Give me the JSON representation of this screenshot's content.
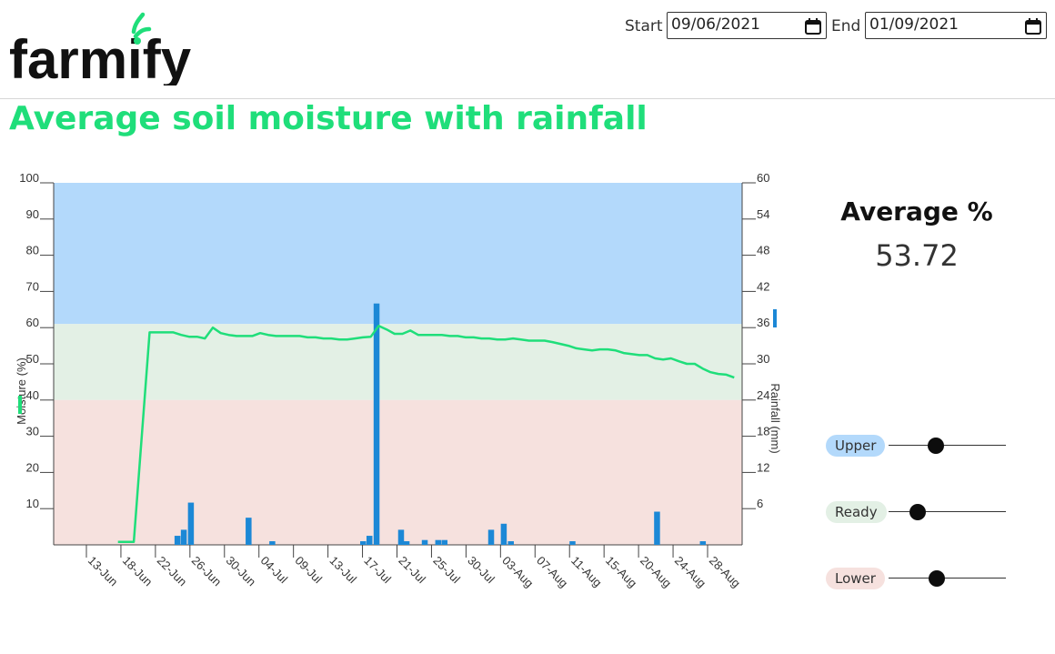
{
  "header": {
    "logo_text": "farmify",
    "start_label": "Start",
    "start_value": "09/06/2021",
    "end_label": "End",
    "end_value": "01/09/2021",
    "calendar_icon": "calendar-icon"
  },
  "page_title": "Average soil moisture with rainfall",
  "summary": {
    "title": "Average %",
    "value": "53.72"
  },
  "thresholds": [
    {
      "label": "Upper",
      "color": "#b3d9fb",
      "level": 40
    },
    {
      "label": "Ready",
      "color": "#e3f0e5",
      "level": 25
    },
    {
      "label": "Lower",
      "color": "#f6e1de",
      "level": 41
    }
  ],
  "chart_data": {
    "type": "bar+line",
    "ylabel": "Moisture (%)",
    "y2label": "Rainfall (mm)",
    "ylim": [
      0,
      100
    ],
    "y2lim": [
      0,
      60
    ],
    "yticks": [
      "100",
      "90",
      "80",
      "70",
      "60",
      "50",
      "40",
      "30",
      "20",
      "10"
    ],
    "y2ticks": [
      "60",
      "54",
      "48",
      "42",
      "36",
      "30",
      "24",
      "18",
      "12",
      "6"
    ],
    "xticks": [
      "13-Jun",
      "18-Jun",
      "22-Jun",
      "26-Jun",
      "30-Jun",
      "04-Jul",
      "09-Jul",
      "13-Jul",
      "17-Jul",
      "21-Jul",
      "25-Jul",
      "30-Jul",
      "03-Aug",
      "07-Aug",
      "11-Aug",
      "15-Aug",
      "20-Aug",
      "24-Aug",
      "28-Aug"
    ],
    "x_range_days": [
      0,
      83
    ],
    "bands": [
      {
        "name": "Upper",
        "from": 61,
        "to": 100,
        "color": "#b3d9fb"
      },
      {
        "name": "Ready",
        "from": 40,
        "to": 61,
        "color": "#e3f0e5"
      },
      {
        "name": "Lower",
        "from": 0,
        "to": 40,
        "color": "#f6e1de"
      }
    ],
    "line_color": "#1fde7a",
    "bar_color": "#1c88d6",
    "moisture": [
      [
        4,
        0.8
      ],
      [
        6,
        0.8
      ],
      [
        8,
        58.7
      ],
      [
        10,
        58.7
      ],
      [
        11,
        58.7
      ],
      [
        12,
        58
      ],
      [
        13,
        57.5
      ],
      [
        14,
        57.5
      ],
      [
        15,
        57
      ],
      [
        16,
        60
      ],
      [
        17,
        58.5
      ],
      [
        18,
        58
      ],
      [
        19,
        57.7
      ],
      [
        20,
        57.7
      ],
      [
        21,
        57.7
      ],
      [
        22,
        58.5
      ],
      [
        23,
        58
      ],
      [
        24,
        57.7
      ],
      [
        25,
        57.7
      ],
      [
        26,
        57.7
      ],
      [
        27,
        57.7
      ],
      [
        28,
        57.3
      ],
      [
        29,
        57.3
      ],
      [
        30,
        57
      ],
      [
        31,
        57
      ],
      [
        32,
        56.7
      ],
      [
        33,
        56.7
      ],
      [
        34,
        57
      ],
      [
        35,
        57.3
      ],
      [
        36,
        57.5
      ],
      [
        37,
        60.5
      ],
      [
        38,
        59.5
      ],
      [
        39,
        58.3
      ],
      [
        40,
        58.3
      ],
      [
        41,
        59.2
      ],
      [
        42,
        58
      ],
      [
        43,
        58
      ],
      [
        44,
        58
      ],
      [
        45,
        58
      ],
      [
        46,
        57.7
      ],
      [
        47,
        57.7
      ],
      [
        48,
        57.3
      ],
      [
        49,
        57.3
      ],
      [
        50,
        57
      ],
      [
        51,
        57
      ],
      [
        52,
        56.7
      ],
      [
        53,
        56.7
      ],
      [
        54,
        57
      ],
      [
        55,
        56.7
      ],
      [
        56,
        56.4
      ],
      [
        57,
        56.4
      ],
      [
        58,
        56.4
      ],
      [
        59,
        56
      ],
      [
        60,
        55.5
      ],
      [
        61,
        55
      ],
      [
        62,
        54.3
      ],
      [
        63,
        54
      ],
      [
        64,
        53.7
      ],
      [
        65,
        54
      ],
      [
        66,
        54
      ],
      [
        67,
        53.7
      ],
      [
        68,
        53
      ],
      [
        69,
        52.7
      ],
      [
        70,
        52.4
      ],
      [
        71,
        52.4
      ],
      [
        72,
        51.5
      ],
      [
        73,
        51.2
      ],
      [
        74,
        51.5
      ],
      [
        75,
        50.7
      ],
      [
        76,
        50
      ],
      [
        77,
        50
      ],
      [
        78,
        48.7
      ],
      [
        79,
        47.7
      ],
      [
        80,
        47.2
      ],
      [
        81,
        47
      ],
      [
        82,
        46.2
      ]
    ],
    "rainfall": [
      [
        11.5,
        1.5
      ],
      [
        12.3,
        2.5
      ],
      [
        13.2,
        7
      ],
      [
        20.5,
        4.5
      ],
      [
        23.5,
        0.6
      ],
      [
        35,
        0.6
      ],
      [
        35.8,
        1.5
      ],
      [
        36.7,
        40
      ],
      [
        39.8,
        2.5
      ],
      [
        40.5,
        0.6
      ],
      [
        42.8,
        0.8
      ],
      [
        44.5,
        0.8
      ],
      [
        45.3,
        0.8
      ],
      [
        51.2,
        2.5
      ],
      [
        52.8,
        3.5
      ],
      [
        53.7,
        0.6
      ],
      [
        61.5,
        0.6
      ],
      [
        72.2,
        5.5
      ],
      [
        78,
        0.6
      ]
    ]
  }
}
